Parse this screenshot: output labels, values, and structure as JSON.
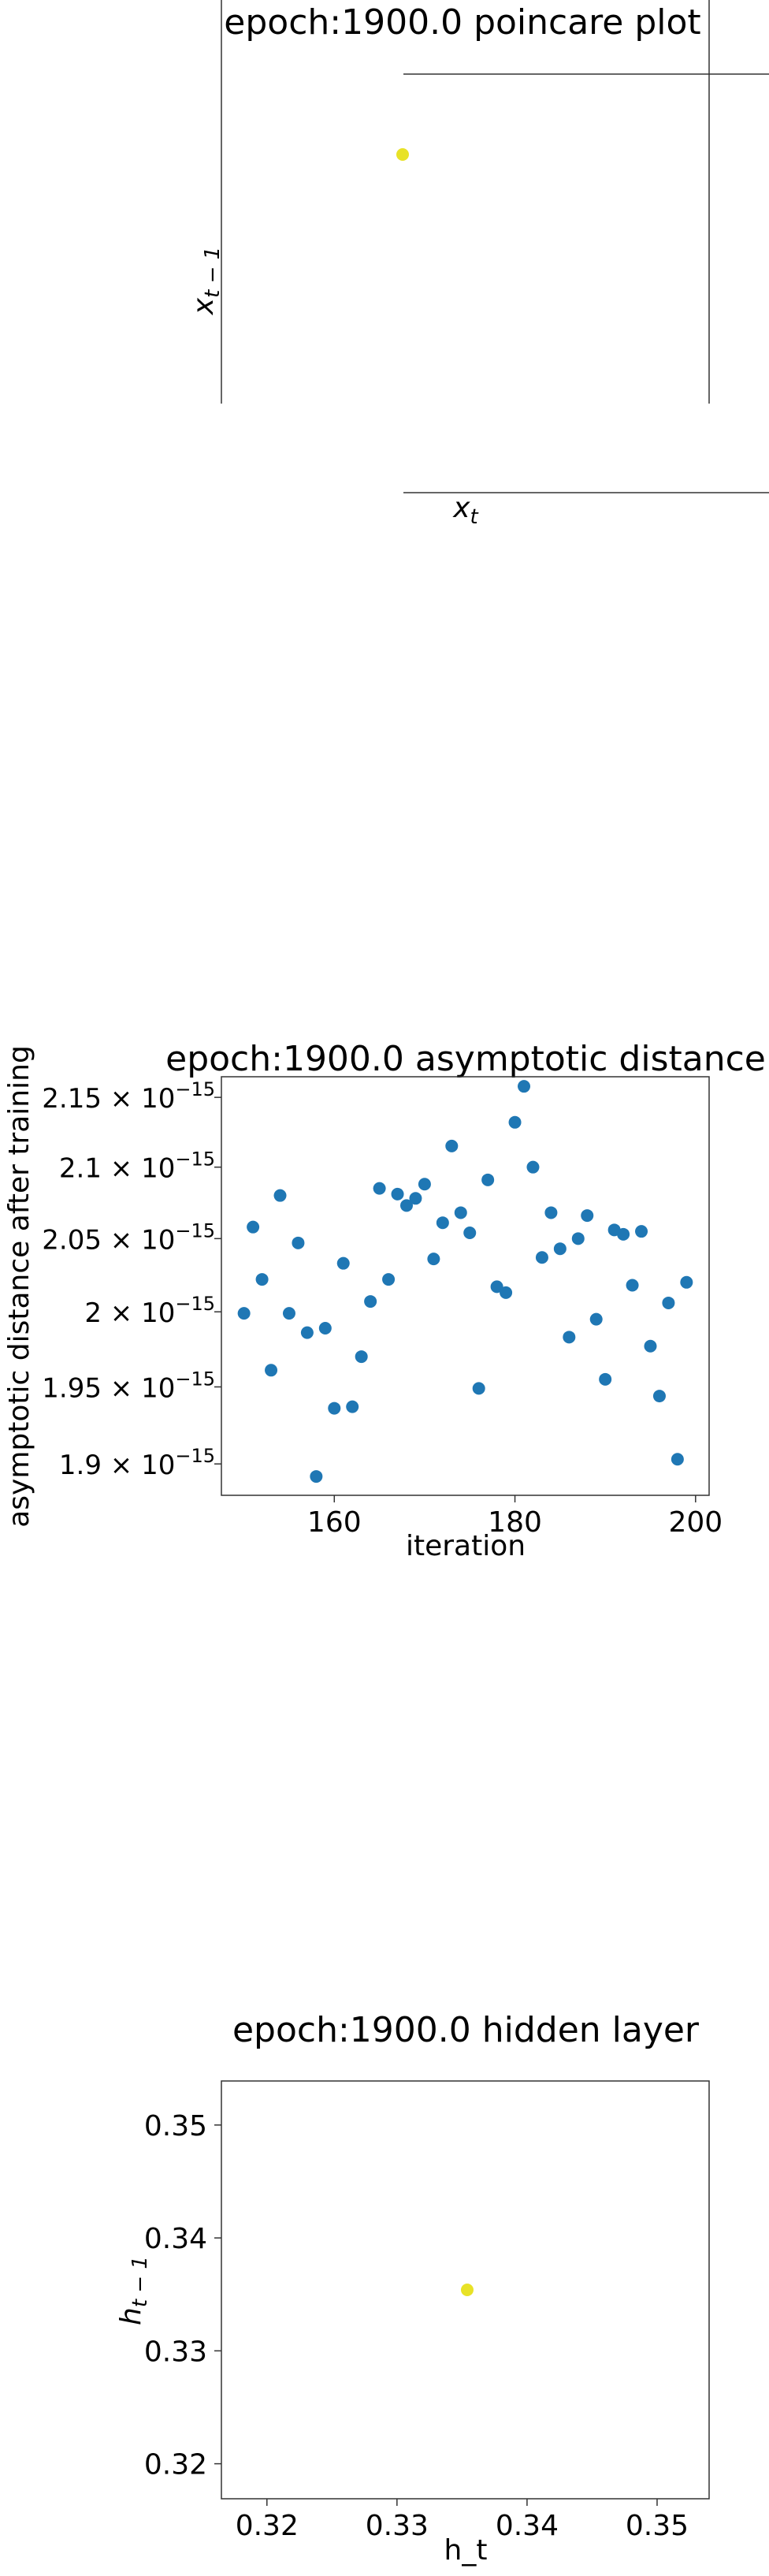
{
  "chart_data": [
    {
      "type": "scatter",
      "title": "epoch:1900.0 poincare plot",
      "xlabel": "x_t",
      "ylabel": "x_{t-1}",
      "points": [
        {
          "x": 0,
          "y": 0
        }
      ],
      "point_color": "#e8e227",
      "grid": false,
      "legend": "none"
    },
    {
      "type": "scatter",
      "title": "epoch:1900.0 asymptotic distance",
      "xlabel": "iteration",
      "ylabel": "asymptotic distance after training",
      "xlim": [
        147.5,
        201.5
      ],
      "ylim": [
        1.88,
        2.165
      ],
      "y_scale": "log",
      "y_scale_factor": "10^-15",
      "x_ticks": [
        160,
        180,
        200
      ],
      "y_ticks": [
        1.9,
        1.95,
        2.0,
        2.05,
        2.1,
        2.15
      ],
      "y_tick_labels": [
        "1.9",
        "1.95",
        "2",
        "2.05",
        "2.1",
        "2.15"
      ],
      "x": [
        150,
        151,
        152,
        153,
        154,
        155,
        156,
        157,
        158,
        159,
        160,
        161,
        162,
        163,
        164,
        165,
        166,
        167,
        168,
        169,
        170,
        171,
        172,
        173,
        174,
        175,
        176,
        177,
        178,
        179,
        180,
        181,
        182,
        183,
        184,
        185,
        186,
        187,
        188,
        189,
        190,
        191,
        192,
        193,
        194,
        195,
        196,
        197,
        198,
        199
      ],
      "y": [
        1.999,
        2.058,
        2.022,
        1.961,
        2.08,
        1.999,
        2.047,
        1.986,
        1.892,
        1.989,
        1.936,
        2.033,
        1.937,
        1.97,
        2.007,
        2.085,
        2.022,
        2.081,
        2.073,
        2.078,
        2.088,
        2.036,
        2.061,
        2.115,
        2.068,
        2.054,
        1.949,
        2.091,
        2.017,
        2.013,
        2.132,
        2.158,
        2.1,
        2.037,
        2.068,
        2.043,
        1.983,
        2.05,
        2.066,
        1.995,
        1.955,
        2.056,
        2.053,
        2.018,
        2.055,
        1.977,
        1.944,
        2.006,
        1.903,
        2.02
      ],
      "point_color": "#1f77b4",
      "grid": false,
      "legend": "none"
    },
    {
      "type": "scatter",
      "title": "epoch:1900.0 hidden layer",
      "xlabel": "h_t",
      "ylabel": "h_{t-1}",
      "xlim": [
        0.3165,
        0.354
      ],
      "ylim": [
        0.3169,
        0.3539
      ],
      "x_ticks": [
        0.32,
        0.33,
        0.34,
        0.35
      ],
      "x_tick_labels": [
        "0.32",
        "0.33",
        "0.34",
        "0.35"
      ],
      "y_ticks": [
        0.32,
        0.33,
        0.34,
        0.35
      ],
      "y_tick_labels": [
        "0.32",
        "0.33",
        "0.34",
        "0.35"
      ],
      "points": [
        {
          "x": 0.3354,
          "y": 0.3354
        }
      ],
      "point_color": "#e8e227",
      "grid": false,
      "legend": "none"
    }
  ]
}
